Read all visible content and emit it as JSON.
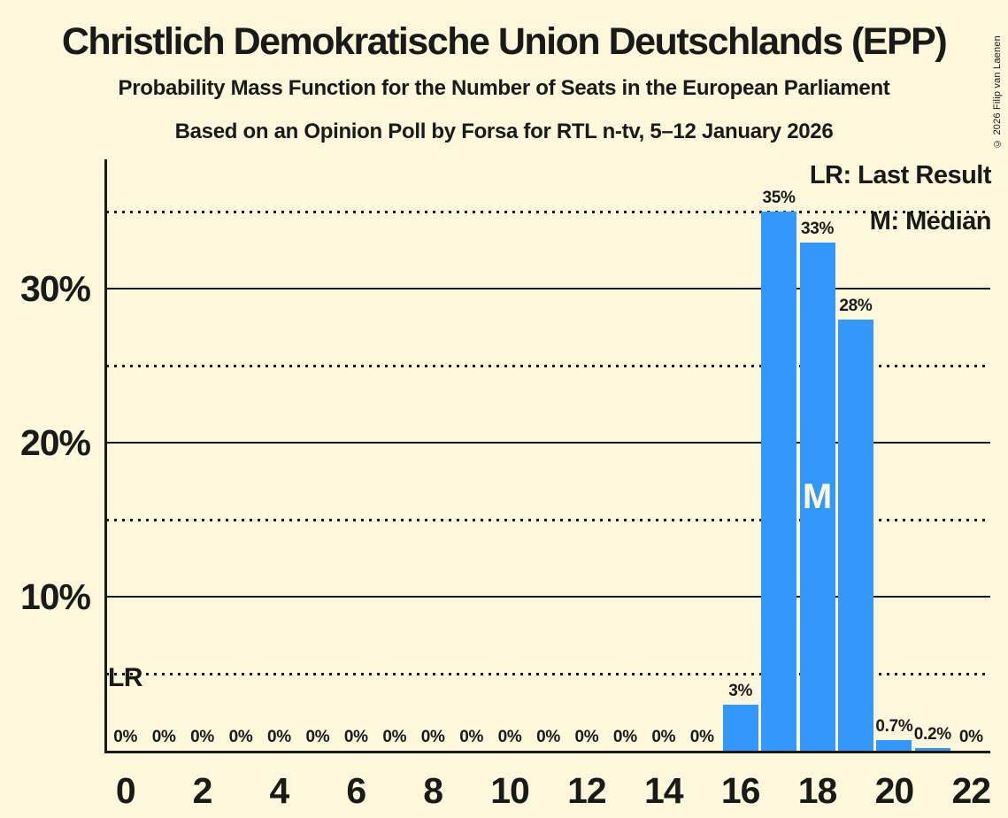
{
  "page": {
    "copyright": "© 2026 Filip van Laenen"
  },
  "chart_data": {
    "type": "bar",
    "title": "Christlich Demokratische Union Deutschlands (EPP)",
    "subtitle": "Probability Mass Function for the Number of Seats in the European Parliament",
    "source_line": "Based on an Opinion Poll by Forsa for RTL n-tv, 5–12 January 2026",
    "xlabel": "",
    "ylabel": "",
    "categories": [
      0,
      1,
      2,
      3,
      4,
      5,
      6,
      7,
      8,
      9,
      10,
      11,
      12,
      13,
      14,
      15,
      16,
      17,
      18,
      19,
      20,
      21,
      22
    ],
    "values": [
      0,
      0,
      0,
      0,
      0,
      0,
      0,
      0,
      0,
      0,
      0,
      0,
      0,
      0,
      0,
      0,
      3,
      35,
      33,
      28,
      0.7,
      0.2,
      0
    ],
    "bar_labels": [
      "0%",
      "0%",
      "0%",
      "0%",
      "0%",
      "0%",
      "0%",
      "0%",
      "0%",
      "0%",
      "0%",
      "0%",
      "0%",
      "0%",
      "0%",
      "0%",
      "3%",
      "35%",
      "33%",
      "28%",
      "0.7%",
      "0.2%",
      "0%"
    ],
    "x_ticks": [
      0,
      2,
      4,
      6,
      8,
      10,
      12,
      14,
      16,
      18,
      20,
      22
    ],
    "y_ticks": [
      {
        "value": 10,
        "label": "10%"
      },
      {
        "value": 20,
        "label": "20%"
      },
      {
        "value": 30,
        "label": "30%"
      }
    ],
    "y_minor_ticks": [
      5,
      15,
      25,
      35
    ],
    "ylim": [
      0,
      38.4
    ],
    "grid": "solid major every 10%, dotted minor every 5%",
    "legend_position": "top-right",
    "legend_lr": "LR: Last Result",
    "legend_m": "M: Median",
    "median": 18,
    "median_label": "M",
    "last_result_marker": "LR",
    "bar_color": "#3498FB",
    "background_color": "#FDF7DE",
    "text_color": "#1A1A17",
    "grid_color": "#1A1A17"
  }
}
